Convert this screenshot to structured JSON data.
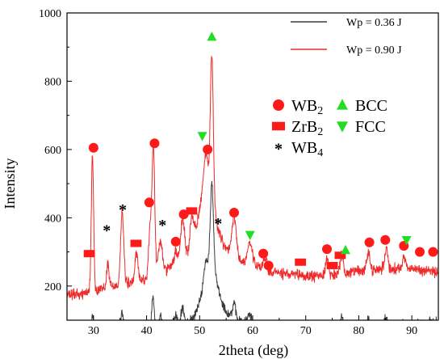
{
  "chart_data": {
    "type": "line",
    "title": "",
    "xlabel": "2theta (deg)",
    "ylabel": "Intensity",
    "xlim": [
      25,
      95
    ],
    "ylim": [
      100,
      1000
    ],
    "xticks": [
      30,
      40,
      50,
      60,
      70,
      80,
      90
    ],
    "yticks": [
      200,
      400,
      600,
      800,
      1000
    ],
    "legend_placement": "top-right",
    "series": [
      {
        "name": "Wp = 0.36 J",
        "color": "#3a3a3a",
        "baseline": [
          [
            25,
            40
          ],
          [
            28,
            42
          ],
          [
            30,
            48
          ],
          [
            35,
            52
          ],
          [
            40,
            60
          ],
          [
            44,
            72
          ],
          [
            47,
            85
          ],
          [
            49,
            110
          ],
          [
            50.5,
            175
          ],
          [
            51.5,
            200
          ],
          [
            52.2,
            240
          ],
          [
            53,
            230
          ],
          [
            54,
            165
          ],
          [
            55,
            125
          ],
          [
            57,
            100
          ],
          [
            60,
            85
          ],
          [
            63,
            75
          ],
          [
            67,
            68
          ],
          [
            72,
            64
          ],
          [
            78,
            68
          ],
          [
            85,
            85
          ],
          [
            90,
            88
          ],
          [
            95,
            95
          ]
        ],
        "peaks": [
          [
            29.8,
            70,
            0.22
          ],
          [
            32.7,
            42,
            0.2
          ],
          [
            35.4,
            70,
            0.3
          ],
          [
            38.1,
            30,
            0.3
          ],
          [
            41.2,
            110,
            0.25
          ],
          [
            42.6,
            45,
            0.4
          ],
          [
            45.5,
            35,
            0.35
          ],
          [
            46.8,
            55,
            0.3
          ],
          [
            51.2,
            85,
            0.4
          ],
          [
            52.3,
            260,
            0.3
          ],
          [
            56.5,
            40,
            0.3
          ],
          [
            59.4,
            30,
            0.4
          ],
          [
            74,
            25,
            0.3
          ],
          [
            76.8,
            40,
            0.3
          ],
          [
            81.8,
            30,
            0.3
          ],
          [
            85,
            20,
            0.3
          ]
        ],
        "noise": 14
      },
      {
        "name": "Wp = 0.90 J",
        "color": "#ee2a2a",
        "baseline": [
          [
            25,
            172
          ],
          [
            28,
            178
          ],
          [
            30,
            188
          ],
          [
            33,
            198
          ],
          [
            37,
            208
          ],
          [
            40,
            220
          ],
          [
            43,
            240
          ],
          [
            46,
            265
          ],
          [
            48,
            300
          ],
          [
            49.5,
            380
          ],
          [
            50.5,
            470
          ],
          [
            51.5,
            470
          ],
          [
            52.3,
            430
          ],
          [
            53.3,
            380
          ],
          [
            54.5,
            320
          ],
          [
            56,
            290
          ],
          [
            58,
            270
          ],
          [
            60,
            262
          ],
          [
            62,
            248
          ],
          [
            66,
            235
          ],
          [
            70,
            228
          ],
          [
            75,
            232
          ],
          [
            80,
            245
          ],
          [
            85,
            250
          ],
          [
            90,
            250
          ],
          [
            95,
            240
          ]
        ],
        "peaks": [
          [
            29.8,
            390,
            0.22
          ],
          [
            32.7,
            70,
            0.22
          ],
          [
            35.4,
            210,
            0.3
          ],
          [
            38.1,
            80,
            0.3
          ],
          [
            40.7,
            150,
            0.3
          ],
          [
            41.3,
            360,
            0.25
          ],
          [
            42.6,
            90,
            0.4
          ],
          [
            45.5,
            40,
            0.35
          ],
          [
            46.8,
            120,
            0.35
          ],
          [
            48.5,
            80,
            0.3
          ],
          [
            51.2,
            120,
            0.4
          ],
          [
            52.3,
            450,
            0.28
          ],
          [
            56.5,
            120,
            0.4
          ],
          [
            59.5,
            60,
            0.45
          ],
          [
            62.3,
            40,
            0.3
          ],
          [
            74,
            50,
            0.3
          ],
          [
            76.8,
            50,
            0.3
          ],
          [
            81.8,
            50,
            0.3
          ],
          [
            85.2,
            60,
            0.3
          ],
          [
            88.5,
            40,
            0.3
          ]
        ],
        "noise": 16
      }
    ],
    "marker_legend": [
      {
        "shape": "circle",
        "color": "#ff1a1a",
        "label_base": "WB",
        "label_sub": "2"
      },
      {
        "shape": "triangle-up",
        "color": "#22dd22",
        "label_base": "BCC",
        "label_sub": ""
      },
      {
        "shape": "square",
        "color": "#ff1a1a",
        "label_base": "ZrB",
        "label_sub": "2"
      },
      {
        "shape": "triangle-down",
        "color": "#22dd22",
        "label_base": "FCC",
        "label_sub": ""
      },
      {
        "shape": "star",
        "color": "#000000",
        "label_base": "WB",
        "label_sub": "4"
      }
    ],
    "phase_annotations": [
      {
        "phase": "WB2",
        "x": 30.0,
        "y": 605
      },
      {
        "phase": "WB2",
        "x": 41.5,
        "y": 618
      },
      {
        "phase": "WB2",
        "x": 40.5,
        "y": 445
      },
      {
        "phase": "WB2",
        "x": 47.0,
        "y": 410
      },
      {
        "phase": "WB2",
        "x": 45.5,
        "y": 330
      },
      {
        "phase": "WB2",
        "x": 51.5,
        "y": 600
      },
      {
        "phase": "WB2",
        "x": 56.5,
        "y": 415
      },
      {
        "phase": "WB2",
        "x": 62.0,
        "y": 295
      },
      {
        "phase": "WB2",
        "x": 63.0,
        "y": 260
      },
      {
        "phase": "WB2",
        "x": 74.0,
        "y": 308
      },
      {
        "phase": "WB2",
        "x": 82.0,
        "y": 328
      },
      {
        "phase": "WB2",
        "x": 85.0,
        "y": 335
      },
      {
        "phase": "WB2",
        "x": 88.5,
        "y": 318
      },
      {
        "phase": "WB2",
        "x": 91.5,
        "y": 300
      },
      {
        "phase": "WB2",
        "x": 94.0,
        "y": 300
      },
      {
        "phase": "ZrB2",
        "x": 29.2,
        "y": 295
      },
      {
        "phase": "ZrB2",
        "x": 38.0,
        "y": 325
      },
      {
        "phase": "ZrB2",
        "x": 48.5,
        "y": 420
      },
      {
        "phase": "ZrB2",
        "x": 69.0,
        "y": 270
      },
      {
        "phase": "ZrB2",
        "x": 75.0,
        "y": 260
      },
      {
        "phase": "ZrB2",
        "x": 76.5,
        "y": 290
      },
      {
        "phase": "WB4",
        "x": 32.5,
        "y": 365
      },
      {
        "phase": "WB4",
        "x": 35.5,
        "y": 425
      },
      {
        "phase": "WB4",
        "x": 43.0,
        "y": 380
      },
      {
        "phase": "WB4",
        "x": 53.5,
        "y": 385
      },
      {
        "phase": "BCC",
        "x": 52.3,
        "y": 930
      },
      {
        "phase": "BCC",
        "x": 77.5,
        "y": 305
      },
      {
        "phase": "FCC",
        "x": 50.5,
        "y": 640
      },
      {
        "phase": "FCC",
        "x": 59.5,
        "y": 350
      },
      {
        "phase": "FCC",
        "x": 89.0,
        "y": 335
      }
    ]
  }
}
